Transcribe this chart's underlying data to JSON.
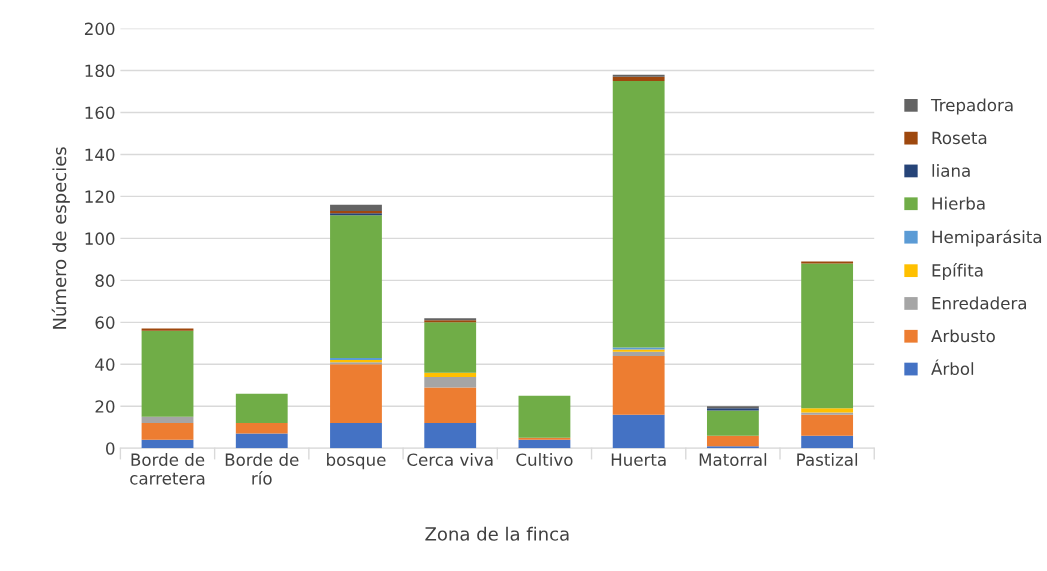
{
  "chart_data": {
    "type": "bar",
    "stacked": true,
    "xlabel": "Zona de la finca",
    "ylabel": "Número de especies",
    "categories": [
      "Borde de\ncarretera",
      "Borde de\nrío",
      "bosque",
      "Cerca viva",
      "Cultivo",
      "Huerta",
      "Matorral",
      "Pastizal"
    ],
    "series": [
      {
        "name": "Árbol",
        "color": "#4472c4",
        "values": [
          4,
          7,
          12,
          12,
          4,
          16,
          1,
          6
        ]
      },
      {
        "name": "Arbusto",
        "color": "#ed7d31",
        "values": [
          8,
          5,
          28,
          17,
          1,
          28,
          5,
          10
        ]
      },
      {
        "name": "Enredadera",
        "color": "#a5a5a5",
        "values": [
          3,
          0,
          1,
          5,
          0,
          2,
          0,
          1
        ]
      },
      {
        "name": "Epífita",
        "color": "#ffc000",
        "values": [
          0,
          0,
          1,
          2,
          0,
          1,
          0,
          2
        ]
      },
      {
        "name": "Hemiparásita",
        "color": "#5b9bd5",
        "values": [
          0,
          0,
          1,
          0,
          0,
          1,
          0,
          0
        ]
      },
      {
        "name": "Hierba",
        "color": "#70ad47",
        "values": [
          41,
          14,
          68,
          24,
          20,
          127,
          12,
          69
        ]
      },
      {
        "name": "liana",
        "color": "#264478",
        "values": [
          0,
          0,
          1,
          0,
          0,
          0,
          1,
          0
        ]
      },
      {
        "name": "Roseta",
        "color": "#9e480e",
        "values": [
          1,
          0,
          1,
          1,
          0,
          2,
          0,
          1
        ]
      },
      {
        "name": "Trepadora",
        "color": "#636363",
        "values": [
          0,
          0,
          3,
          1,
          0,
          1,
          1,
          0
        ]
      }
    ],
    "ylim": [
      0,
      200
    ],
    "yticks": [
      0,
      20,
      40,
      60,
      80,
      100,
      120,
      140,
      160,
      180,
      200
    ],
    "grid": "y",
    "legend": "right"
  }
}
